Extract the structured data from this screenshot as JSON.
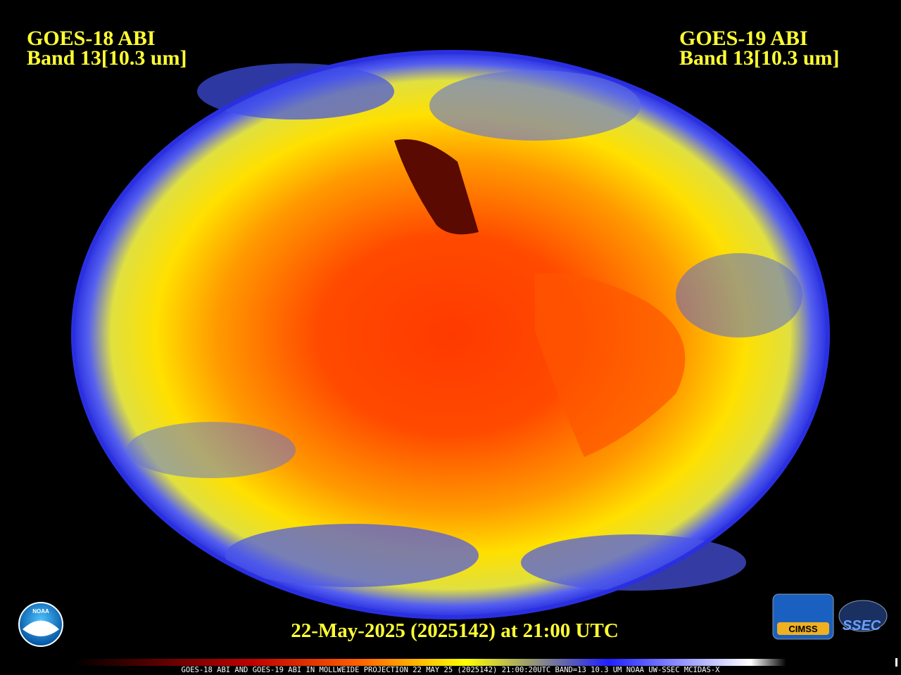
{
  "header": {
    "left": {
      "line1": "GOES-18 ABI",
      "line2": "Band 13[10.3 um]"
    },
    "right": {
      "line1": "GOES-19 ABI",
      "line2": "Band 13[10.3 um]"
    }
  },
  "caption": "22-May-2025 (2025142) at 21:00 UTC",
  "footer": "GOES-18 ABI AND GOES-19 ABI IN MOLLWEIDE PROJECTION 22 MAY 25 (2025142) 21:00:20UTC BAND=13 10.3 UM NOAA UW-SSEC MCIDAS-X",
  "logos": {
    "noaa": "NOAA",
    "cimss": "CIMSS",
    "ssec": "SSEC"
  }
}
